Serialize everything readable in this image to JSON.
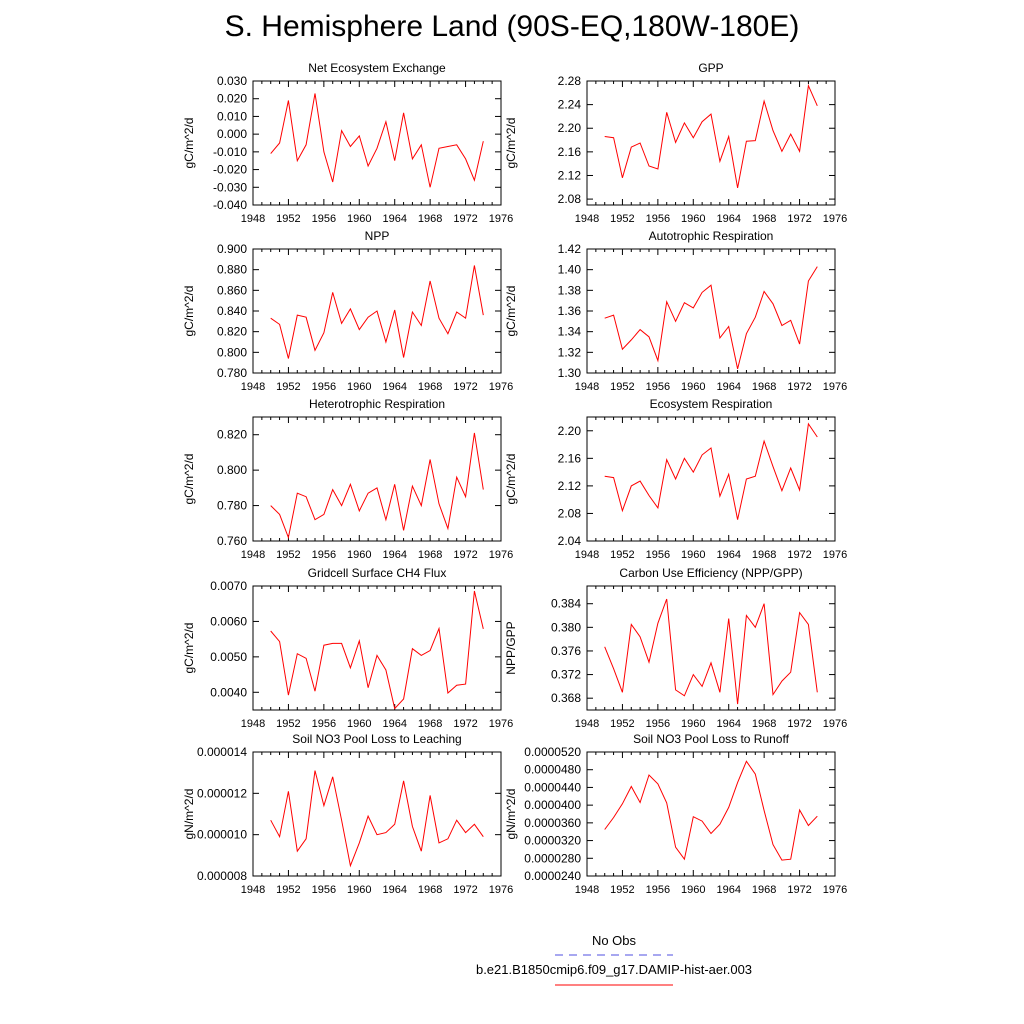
{
  "title": "S. Hemisphere Land (90S-EQ,180W-180E)",
  "legend": {
    "entries": [
      {
        "label": "No Obs",
        "color": "#4f4fe0",
        "dash": "dashed"
      },
      {
        "label": "b.e21.B1850cmip6.f09_g17.DAMIP-hist-aer.003",
        "color": "#ff0000",
        "dash": "solid"
      }
    ]
  },
  "chart_data": [
    {
      "type": "line",
      "title": "Net Ecosystem Exchange",
      "ylabel": "gC/m^2/d",
      "xlim": [
        1948,
        1976
      ],
      "ylim": [
        -0.04,
        0.03
      ],
      "xticks": [
        "1948",
        "1952",
        "1956",
        "1960",
        "1964",
        "1968",
        "1972",
        "1976"
      ],
      "yticks": [
        "-0.040",
        "-0.030",
        "-0.020",
        "-0.010",
        "0.000",
        "0.010",
        "0.020",
        "0.030"
      ],
      "series": [
        {
          "color": "#ff0000",
          "x": [
            1950,
            1951,
            1952,
            1953,
            1954,
            1955,
            1956,
            1957,
            1958,
            1959,
            1960,
            1961,
            1962,
            1963,
            1964,
            1965,
            1966,
            1967,
            1968,
            1969,
            1970,
            1971,
            1972,
            1973,
            1974
          ],
          "y": [
            -0.011,
            -0.005,
            0.019,
            -0.015,
            -0.006,
            0.023,
            -0.01,
            -0.027,
            0.002,
            -0.007,
            -0.001,
            -0.018,
            -0.008,
            0.007,
            -0.015,
            0.012,
            -0.014,
            -0.006,
            -0.03,
            -0.008,
            -0.007,
            -0.006,
            -0.014,
            -0.026,
            -0.004
          ]
        }
      ]
    },
    {
      "type": "line",
      "title": "GPP",
      "ylabel": "gC/m^2/d",
      "xlim": [
        1948,
        1976
      ],
      "ylim": [
        2.07,
        2.28
      ],
      "xticks": [
        "1948",
        "1952",
        "1956",
        "1960",
        "1964",
        "1968",
        "1972",
        "1976"
      ],
      "yticks": [
        "2.08",
        "2.12",
        "2.16",
        "2.20",
        "2.24",
        "2.28"
      ],
      "series": [
        {
          "color": "#ff0000",
          "x": [
            1950,
            1951,
            1952,
            1953,
            1954,
            1955,
            1956,
            1957,
            1958,
            1959,
            1960,
            1961,
            1962,
            1963,
            1964,
            1965,
            1966,
            1967,
            1968,
            1969,
            1970,
            1971,
            1972,
            1973,
            1974
          ],
          "y": [
            2.186,
            2.184,
            2.116,
            2.168,
            2.175,
            2.136,
            2.131,
            2.227,
            2.176,
            2.209,
            2.184,
            2.211,
            2.224,
            2.144,
            2.186,
            2.099,
            2.178,
            2.179,
            2.246,
            2.196,
            2.161,
            2.19,
            2.161,
            2.272,
            2.238
          ]
        }
      ]
    },
    {
      "type": "line",
      "title": "NPP",
      "ylabel": "gC/m^2/d",
      "xlim": [
        1948,
        1976
      ],
      "ylim": [
        0.78,
        0.9
      ],
      "xticks": [
        "1948",
        "1952",
        "1956",
        "1960",
        "1964",
        "1968",
        "1972",
        "1976"
      ],
      "yticks": [
        "0.780",
        "0.800",
        "0.820",
        "0.840",
        "0.860",
        "0.880",
        "0.900"
      ],
      "series": [
        {
          "color": "#ff0000",
          "x": [
            1950,
            1951,
            1952,
            1953,
            1954,
            1955,
            1956,
            1957,
            1958,
            1959,
            1960,
            1961,
            1962,
            1963,
            1964,
            1965,
            1966,
            1967,
            1968,
            1969,
            1970,
            1971,
            1972,
            1973,
            1974
          ],
          "y": [
            0.833,
            0.827,
            0.794,
            0.836,
            0.834,
            0.802,
            0.819,
            0.858,
            0.828,
            0.842,
            0.822,
            0.834,
            0.84,
            0.81,
            0.841,
            0.795,
            0.839,
            0.826,
            0.869,
            0.833,
            0.818,
            0.839,
            0.833,
            0.884,
            0.836
          ]
        }
      ]
    },
    {
      "type": "line",
      "title": "Autotrophic Respiration",
      "ylabel": "gC/m^2/d",
      "xlim": [
        1948,
        1976
      ],
      "ylim": [
        1.3,
        1.42
      ],
      "xticks": [
        "1948",
        "1952",
        "1956",
        "1960",
        "1964",
        "1968",
        "1972",
        "1976"
      ],
      "yticks": [
        "1.30",
        "1.32",
        "1.34",
        "1.36",
        "1.38",
        "1.40",
        "1.42"
      ],
      "series": [
        {
          "color": "#ff0000",
          "x": [
            1950,
            1951,
            1952,
            1953,
            1954,
            1955,
            1956,
            1957,
            1958,
            1959,
            1960,
            1961,
            1962,
            1963,
            1964,
            1965,
            1966,
            1967,
            1968,
            1969,
            1970,
            1971,
            1972,
            1973,
            1974
          ],
          "y": [
            1.353,
            1.356,
            1.323,
            1.332,
            1.342,
            1.335,
            1.312,
            1.369,
            1.35,
            1.368,
            1.363,
            1.378,
            1.385,
            1.334,
            1.345,
            1.304,
            1.338,
            1.354,
            1.379,
            1.367,
            1.346,
            1.351,
            1.328,
            1.389,
            1.403
          ]
        }
      ]
    },
    {
      "type": "line",
      "title": "Heterotrophic Respiration",
      "ylabel": "gC/m^2/d",
      "xlim": [
        1948,
        1976
      ],
      "ylim": [
        0.76,
        0.83
      ],
      "xticks": [
        "1948",
        "1952",
        "1956",
        "1960",
        "1964",
        "1968",
        "1972",
        "1976"
      ],
      "yticks": [
        "0.760",
        "0.780",
        "0.800",
        "0.820"
      ],
      "series": [
        {
          "color": "#ff0000",
          "x": [
            1950,
            1951,
            1952,
            1953,
            1954,
            1955,
            1956,
            1957,
            1958,
            1959,
            1960,
            1961,
            1962,
            1963,
            1964,
            1965,
            1966,
            1967,
            1968,
            1969,
            1970,
            1971,
            1972,
            1973,
            1974
          ],
          "y": [
            0.78,
            0.775,
            0.762,
            0.787,
            0.785,
            0.772,
            0.775,
            0.789,
            0.78,
            0.792,
            0.777,
            0.787,
            0.79,
            0.772,
            0.792,
            0.766,
            0.791,
            0.78,
            0.806,
            0.781,
            0.767,
            0.796,
            0.785,
            0.821,
            0.789
          ]
        }
      ]
    },
    {
      "type": "line",
      "title": "Ecosystem Respiration",
      "ylabel": "gC/m^2/d",
      "xlim": [
        1948,
        1976
      ],
      "ylim": [
        2.04,
        2.22
      ],
      "xticks": [
        "1948",
        "1952",
        "1956",
        "1960",
        "1964",
        "1968",
        "1972",
        "1976"
      ],
      "yticks": [
        "2.04",
        "2.08",
        "2.12",
        "2.16",
        "2.20"
      ],
      "series": [
        {
          "color": "#ff0000",
          "x": [
            1950,
            1951,
            1952,
            1953,
            1954,
            1955,
            1956,
            1957,
            1958,
            1959,
            1960,
            1961,
            1962,
            1963,
            1964,
            1965,
            1966,
            1967,
            1968,
            1969,
            1970,
            1971,
            1972,
            1973,
            1974
          ],
          "y": [
            2.134,
            2.132,
            2.084,
            2.12,
            2.127,
            2.106,
            2.088,
            2.158,
            2.13,
            2.16,
            2.14,
            2.165,
            2.175,
            2.105,
            2.137,
            2.071,
            2.13,
            2.134,
            2.185,
            2.148,
            2.113,
            2.146,
            2.114,
            2.21,
            2.191
          ]
        }
      ]
    },
    {
      "type": "line",
      "title": "Gridcell Surface CH4 Flux",
      "ylabel": "gC/m^2/d",
      "xlim": [
        1948,
        1976
      ],
      "ylim": [
        0.0035,
        0.007
      ],
      "xticks": [
        "1948",
        "1952",
        "1956",
        "1960",
        "1964",
        "1968",
        "1972",
        "1976"
      ],
      "yticks": [
        "0.0040",
        "0.0050",
        "0.0060",
        "0.0070"
      ],
      "series": [
        {
          "color": "#ff0000",
          "x": [
            1950,
            1951,
            1952,
            1953,
            1954,
            1955,
            1956,
            1957,
            1958,
            1959,
            1960,
            1961,
            1962,
            1963,
            1964,
            1965,
            1966,
            1967,
            1968,
            1969,
            1970,
            1971,
            1972,
            1973,
            1974
          ],
          "y": [
            0.00573,
            0.00543,
            0.00392,
            0.00509,
            0.00496,
            0.00403,
            0.00533,
            0.00538,
            0.00538,
            0.00469,
            0.00545,
            0.00413,
            0.00504,
            0.00463,
            0.00354,
            0.00381,
            0.00523,
            0.00504,
            0.00518,
            0.0058,
            0.00398,
            0.0042,
            0.00423,
            0.00686,
            0.00579
          ]
        }
      ]
    },
    {
      "type": "line",
      "title": "Carbon Use Efficiency (NPP/GPP)",
      "ylabel": "NPP/GPP",
      "xlim": [
        1948,
        1976
      ],
      "ylim": [
        0.366,
        0.387
      ],
      "xticks": [
        "1948",
        "1952",
        "1956",
        "1960",
        "1964",
        "1968",
        "1972",
        "1976"
      ],
      "yticks": [
        "0.368",
        "0.372",
        "0.376",
        "0.380",
        "0.384"
      ],
      "series": [
        {
          "color": "#ff0000",
          "x": [
            1950,
            1951,
            1952,
            1953,
            1954,
            1955,
            1956,
            1957,
            1958,
            1959,
            1960,
            1961,
            1962,
            1963,
            1964,
            1965,
            1966,
            1967,
            1968,
            1969,
            1970,
            1971,
            1972,
            1973,
            1974
          ],
          "y": [
            0.3767,
            0.373,
            0.369,
            0.3805,
            0.3784,
            0.3741,
            0.3807,
            0.3848,
            0.3694,
            0.3684,
            0.372,
            0.37,
            0.374,
            0.369,
            0.3815,
            0.367,
            0.382,
            0.38,
            0.384,
            0.3686,
            0.3709,
            0.3724,
            0.3825,
            0.3805,
            0.369
          ]
        }
      ]
    },
    {
      "type": "line",
      "title": "Soil NO3 Pool Loss to Leaching",
      "ylabel": "gN/m^2/d",
      "xlim": [
        1948,
        1976
      ],
      "ylim": [
        8e-06,
        1.4e-05
      ],
      "xticks": [
        "1948",
        "1952",
        "1956",
        "1960",
        "1964",
        "1968",
        "1972",
        "1976"
      ],
      "yticks": [
        "0.000008",
        "0.000010",
        "0.000012",
        "0.000014"
      ],
      "series": [
        {
          "color": "#ff0000",
          "x": [
            1950,
            1951,
            1952,
            1953,
            1954,
            1955,
            1956,
            1957,
            1958,
            1959,
            1960,
            1961,
            1962,
            1963,
            1964,
            1965,
            1966,
            1967,
            1968,
            1969,
            1970,
            1971,
            1972,
            1973,
            1974
          ],
          "y": [
            1.07e-05,
            9.9e-06,
            1.21e-05,
            9.2e-06,
            9.8e-06,
            1.31e-05,
            1.14e-05,
            1.28e-05,
            1.07e-05,
            8.5e-06,
            9.6e-06,
            1.09e-05,
            1e-05,
            1.01e-05,
            1.05e-05,
            1.26e-05,
            1.04e-05,
            9.2e-06,
            1.19e-05,
            9.6e-06,
            9.8e-06,
            1.07e-05,
            1.01e-05,
            1.05e-05,
            9.9e-06
          ]
        }
      ]
    },
    {
      "type": "line",
      "title": "Soil NO3 Pool Loss to Runoff",
      "ylabel": "gN/m^2/d",
      "xlim": [
        1948,
        1976
      ],
      "ylim": [
        2.4e-05,
        5.2e-05
      ],
      "xticks": [
        "1948",
        "1952",
        "1956",
        "1960",
        "1964",
        "1968",
        "1972",
        "1976"
      ],
      "yticks": [
        "0.0000240",
        "0.0000280",
        "0.0000320",
        "0.0000360",
        "0.0000400",
        "0.0000440",
        "0.0000480",
        "0.0000520"
      ],
      "series": [
        {
          "color": "#ff0000",
          "x": [
            1950,
            1951,
            1952,
            1953,
            1954,
            1955,
            1956,
            1957,
            1958,
            1959,
            1960,
            1961,
            1962,
            1963,
            1964,
            1965,
            1966,
            1967,
            1968,
            1969,
            1970,
            1971,
            1972,
            1973,
            1974
          ],
          "y": [
            3.45e-05,
            3.72e-05,
            4.03e-05,
            4.42e-05,
            4.06e-05,
            4.68e-05,
            4.48e-05,
            4.05e-05,
            3.05e-05,
            2.78e-05,
            3.74e-05,
            3.64e-05,
            3.36e-05,
            3.57e-05,
            3.95e-05,
            4.51e-05,
            4.99e-05,
            4.7e-05,
            3.88e-05,
            3.11e-05,
            2.76e-05,
            2.78e-05,
            3.89e-05,
            3.54e-05,
            3.75e-05
          ]
        }
      ]
    }
  ]
}
